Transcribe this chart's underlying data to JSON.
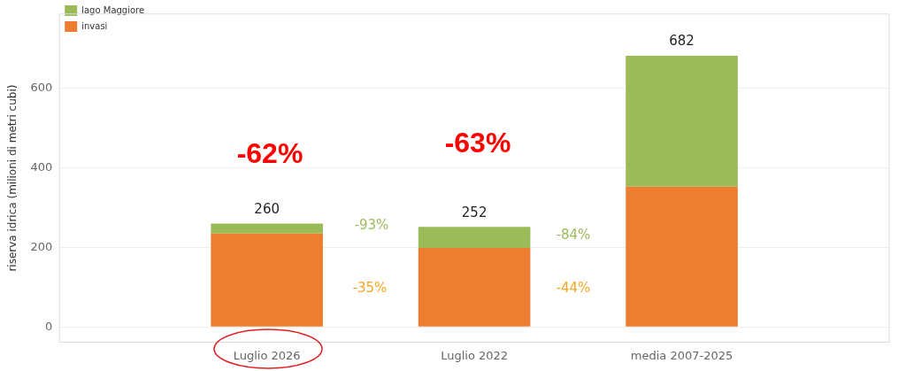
{
  "chart_data": {
    "type": "bar",
    "stacked": true,
    "ylabel": "riserva idrica (milioni di metri cubi)",
    "categories": [
      "Luglio 2026",
      "Luglio 2022",
      "media 2007-2025"
    ],
    "series": [
      {
        "name": "invasi",
        "color": "#ed7d31",
        "values": [
          235,
          199,
          353
        ]
      },
      {
        "name": "lago Maggiore",
        "color": "#9bbb59",
        "values": [
          25,
          53,
          329
        ]
      }
    ],
    "totals": [
      "260",
      "252",
      "682"
    ],
    "ylim": [
      -38,
      787
    ],
    "yticks": [
      0,
      200,
      400,
      600
    ],
    "grid": "y",
    "legend": "top left",
    "annotations": [
      "-62%",
      "-63%",
      "-93%",
      "-35%",
      "-84%",
      "-44%"
    ]
  }
}
